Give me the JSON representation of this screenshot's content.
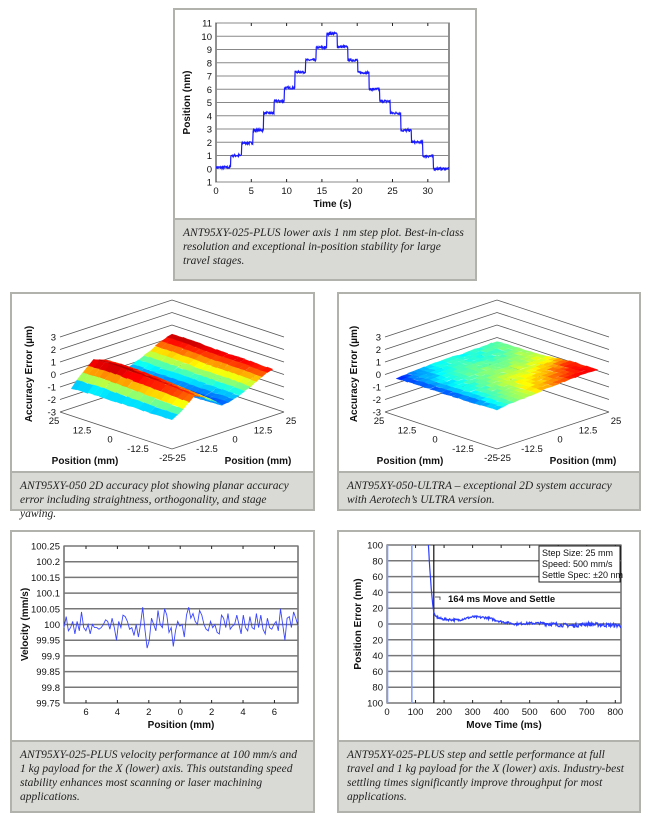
{
  "chart_data": [
    {
      "type": "line",
      "xlabel": "Time (s)",
      "ylabel": "Position (nm)",
      "xlim": [
        0,
        33
      ],
      "ylim": [
        -1,
        11
      ],
      "xticks": [
        0,
        5,
        10,
        15,
        20,
        25,
        30
      ],
      "xtick_labels": [
        "0",
        "5",
        "10",
        "15",
        "20",
        "25",
        "30"
      ],
      "yticks": [
        -1,
        0,
        1,
        2,
        3,
        4,
        5,
        6,
        7,
        8,
        9,
        10,
        11
      ],
      "ytick_labels": [
        "1",
        "0",
        "1",
        "2",
        "3",
        "4",
        "5",
        "6",
        "7",
        "8",
        "9",
        "10",
        "11"
      ],
      "grid": "horizontal",
      "line_color": "#1a1aff",
      "step_times": [
        2.1,
        3.6,
        5.2,
        6.7,
        8.2,
        9.7,
        11.2,
        12.7,
        14.2,
        15.7,
        17.2,
        18.7,
        20.1,
        21.7,
        23.2,
        24.7,
        26.2,
        27.7,
        29.3,
        30.8
      ],
      "step_levels": [
        0.1,
        1.0,
        1.95,
        2.9,
        4.2,
        5.1,
        6.1,
        7.3,
        8.2,
        9.15,
        10.2,
        9.2,
        8.2,
        7.25,
        6.0,
        5.1,
        4.2,
        2.9,
        2.0,
        0.95,
        0.0
      ],
      "caption": "ANT95XY-025-PLUS lower axis 1 nm step plot. Best-in-class resolution and exceptional in-position stability for large travel stages."
    },
    {
      "type": "surface",
      "zlabel": "Accuracy Error (µm)",
      "xlabel": "Position (mm)",
      "ylabel": "Position (mm)",
      "zlim": [
        -3,
        3
      ],
      "zticks": [
        "3",
        "2",
        "1",
        "0",
        "-1",
        "-2",
        "-3"
      ],
      "xtick_labels": [
        "25",
        "12.5",
        "0",
        "-12.5",
        "-25"
      ],
      "ytick_labels": [
        "-25",
        "-12.5",
        "0",
        "12.5",
        "25"
      ],
      "colormap": "jet",
      "color_range": [
        -1.6,
        0.7
      ],
      "z_grid": [
        [
          -1.6,
          -1.5,
          -1.4,
          -1.3,
          -1.2
        ],
        [
          -0.4,
          -0.3,
          -0.4,
          -0.5,
          -0.6
        ],
        [
          0.6,
          0.7,
          0.6,
          0.5,
          0.3
        ],
        [
          0.2,
          0.3,
          0.2,
          0.0,
          -0.2
        ],
        [
          -1.1,
          -1.2,
          -1.3,
          -1.2,
          -1.1
        ],
        [
          -0.7,
          -0.8,
          -0.8,
          -0.9,
          -0.9
        ],
        [
          -0.2,
          -0.2,
          -0.3,
          -0.3,
          -0.4
        ],
        [
          0.4,
          0.4,
          0.3,
          0.3,
          0.2
        ],
        [
          0.7,
          0.7,
          0.6,
          0.6,
          0.5
        ]
      ],
      "caption": "ANT95XY-050 2D accuracy plot showing planar accuracy error including straightness, orthogonality, and stage yawing."
    },
    {
      "type": "surface",
      "zlabel": "Accuracy Error (µm)",
      "xlabel": "Position (mm)",
      "ylabel": "Position (mm)",
      "zlim": [
        -3,
        3
      ],
      "zticks": [
        "3",
        "2",
        "1",
        "0",
        "-1",
        "-2",
        "-3"
      ],
      "xtick_labels": [
        "25",
        "12.5",
        "0",
        "-12.5",
        "-25"
      ],
      "ytick_labels": [
        "-25",
        "-12.5",
        "0",
        "12.5",
        "25"
      ],
      "colormap": "jet",
      "color_range": [
        -0.45,
        0.5
      ],
      "z_grid": [
        [
          -0.35,
          -0.3,
          -0.35,
          -0.3,
          -0.2
        ],
        [
          -0.25,
          -0.15,
          -0.1,
          -0.05,
          0.0
        ],
        [
          -0.15,
          -0.05,
          0.0,
          0.05,
          0.1
        ],
        [
          -0.1,
          0.0,
          0.05,
          0.15,
          0.25
        ],
        [
          -0.1,
          -0.05,
          0.05,
          0.2,
          0.35
        ],
        [
          -0.05,
          0.0,
          0.1,
          0.3,
          0.45
        ],
        [
          0.0,
          0.05,
          0.15,
          0.4,
          0.3
        ]
      ],
      "caption": "ANT95XY-050-ULTRA – exceptional 2D system accuracy with Aerotech’s ULTRA version."
    },
    {
      "type": "line",
      "xlabel": "Position (mm)",
      "ylabel": "Velocity (mm/s)",
      "xlim": [
        -7.4,
        7.5
      ],
      "ylim": [
        99.75,
        100.25
      ],
      "xticks": [
        -6,
        -4,
        -2,
        0,
        2,
        4,
        6
      ],
      "xtick_labels": [
        "6",
        "4",
        "2",
        "0",
        "2",
        "4",
        "6"
      ],
      "yticks": [
        99.75,
        99.8,
        99.85,
        99.9,
        99.95,
        100,
        100.05,
        100.1,
        100.15,
        100.2,
        100.25
      ],
      "ytick_labels": [
        "99.75",
        "99.8",
        "99.85",
        "99.9",
        "99.95",
        "100",
        "100.05",
        "100.1",
        "100.15",
        "100.2",
        "100.25"
      ],
      "grid": "horizontal",
      "line_color": "#3a46ff",
      "values": [
        99.99,
        100.025,
        99.98,
        99.99,
        100.01,
        99.97,
        100.01,
        99.98,
        100.04,
        99.99,
        99.98,
        100.0,
        99.97,
        100.0,
        99.99,
        99.99,
        99.985,
        99.99,
        100.0,
        100.015,
        100.01,
        99.985,
        100.02,
        99.99,
        99.95,
        100.01,
        99.99,
        100.03,
        100.025,
        100.01,
        99.985,
        99.99,
        99.965,
        100.0,
        99.96,
        100.0,
        100.055,
        99.985,
        99.925,
        99.95,
        100.02,
        100.0,
        99.98,
        100.045,
        100.0,
        99.99,
        100.05,
        100.03,
        99.975,
        99.99,
        99.93,
        99.98,
        100.01,
        99.995,
        100.0,
        99.96,
        100.03,
        100.055,
        100.02,
        100.035,
        100.01,
        100.0,
        100.045,
        100.03,
        100.0,
        99.985,
        99.98,
        100.01,
        99.99,
        100.0,
        99.975,
        99.97,
        100.03,
        100.02,
        99.99,
        100.035,
        99.985,
        99.995,
        100.0,
        100.03,
        100.0,
        99.97,
        100.03,
        99.99,
        99.98,
        100.025,
        99.99,
        99.985,
        100.035,
        99.99,
        100.03,
        99.985,
        99.97,
        100.02,
        99.99,
        99.985,
        100.0,
        100.01,
        99.98,
        100.05,
        100.0,
        99.95,
        100.02,
        100.025,
        99.99,
        100.04,
        100.02,
        99.995
      ],
      "caption": "ANT95XY-025-PLUS velocity performance at 100 mm/s and 1 kg payload for the X (lower) axis. This outstanding speed stability enhances most scanning or laser machining applications."
    },
    {
      "type": "line",
      "xlabel": "Move Time (ms)",
      "ylabel": "Position Error (nm)",
      "xlim": [
        0,
        820
      ],
      "ylim": [
        -100,
        100
      ],
      "xticks": [
        0,
        100,
        200,
        300,
        400,
        500,
        600,
        700,
        800
      ],
      "xtick_labels": [
        "0",
        "100",
        "200",
        "300",
        "400",
        "500",
        "600",
        "700",
        "800"
      ],
      "yticks": [
        100,
        80,
        60,
        40,
        20,
        0,
        -20,
        -40,
        -60,
        -80,
        -100
      ],
      "ytick_labels": [
        "100",
        "80",
        "60",
        "40",
        "20",
        "0",
        "20",
        "40",
        "60",
        "80",
        "100"
      ],
      "grid": "horizontal",
      "line_color": "#2a3cff",
      "move_lines_x": [
        2,
        87
      ],
      "move_line_color": "#7f9cff",
      "settle_marker_x": 164,
      "x": [
        145,
        150,
        155,
        160,
        164,
        170,
        185,
        200,
        250,
        300,
        350,
        400,
        450,
        500,
        550,
        600,
        650,
        700,
        750,
        820
      ],
      "y": [
        100,
        70,
        45,
        25,
        15,
        10,
        7,
        6,
        5,
        9,
        8,
        3,
        0,
        1,
        1,
        -1,
        -2,
        0,
        -1,
        -2
      ],
      "annotation": "164 ms Move and Settle",
      "legend_lines": [
        "Step Size: 25 mm",
        "Speed: 500 mm/s",
        "Settle Spec: ±20 nm"
      ],
      "legend_placement": "top-right",
      "caption": "ANT95XY-025-PLUS step and settle performance at full travel and 1 kg payload for the X (lower) axis. Industry-best settling times significantly improve throughput for most applications."
    }
  ]
}
